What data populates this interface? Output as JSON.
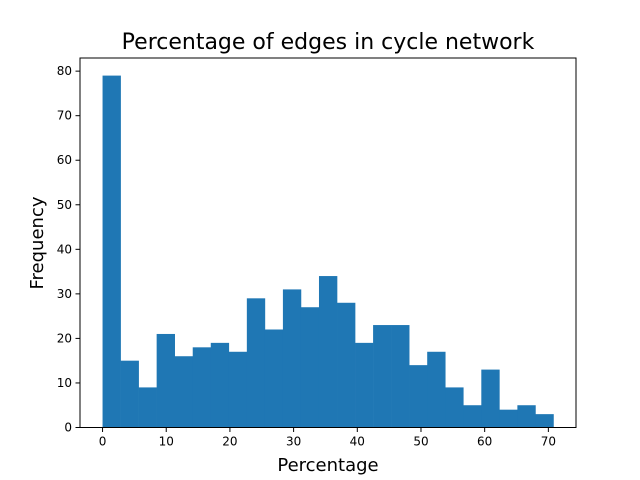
{
  "chart_data": {
    "type": "bar",
    "title": "Percentage of edges in cycle network",
    "xlabel": "Percentage",
    "ylabel": "Frequency",
    "xlim": [
      -3.54,
      74.34
    ],
    "ylim": [
      0,
      82.95
    ],
    "xticks": [
      0,
      10,
      20,
      30,
      40,
      50,
      60,
      70
    ],
    "yticks": [
      0,
      10,
      20,
      30,
      40,
      50,
      60,
      70,
      80
    ],
    "bin_width": 2.832,
    "bin_start": 0,
    "values": [
      79,
      15,
      9,
      21,
      16,
      18,
      19,
      17,
      29,
      22,
      31,
      27,
      34,
      28,
      19,
      23,
      23,
      14,
      17,
      9,
      5,
      13,
      4,
      5,
      3
    ],
    "bar_color": "#1f77b4",
    "grid": false,
    "legend": "none"
  }
}
